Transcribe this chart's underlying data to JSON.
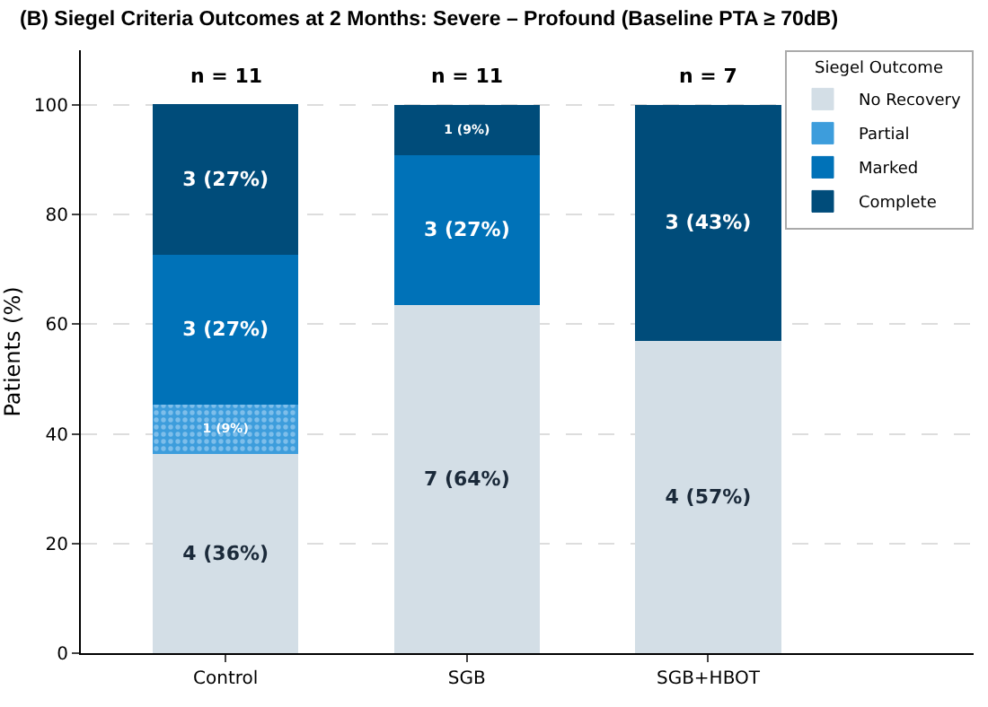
{
  "chart_data": {
    "type": "bar",
    "title": "(B) Siegel Criteria Outcomes at 2 Months: Severe – Profound (Baseline PTA ≥ 70dB)",
    "ylabel": "Patients (%)",
    "legend_title": "Siegel Outcome",
    "categories": [
      "Control",
      "SGB",
      "SGB+HBOT"
    ],
    "stacked": true,
    "series": [
      {
        "name": "No Recovery",
        "color": "#d3dee6",
        "values": [
          36.4,
          63.6,
          57.1
        ],
        "value_labels": [
          "4 (36%)",
          "7 (64%)",
          "4 (57%)"
        ]
      },
      {
        "name": "Partial",
        "color": "#3d9ddc",
        "values": [
          9.1,
          0,
          0
        ],
        "value_labels": [
          "1 (9%)",
          null,
          null
        ]
      },
      {
        "name": "Marked",
        "color": "#0072b8",
        "values": [
          27.3,
          27.3,
          0
        ],
        "value_labels": [
          "3 (27%)",
          "3 (27%)",
          null
        ]
      },
      {
        "name": "Complete",
        "color": "#004c7a",
        "values": [
          27.3,
          9.1,
          42.9
        ],
        "value_labels": [
          "3 (27%)",
          "1 (9%)",
          "3 (43%)"
        ]
      }
    ],
    "annotations": [
      {
        "text": "n = 11",
        "x": "Control",
        "y": 100
      },
      {
        "text": "n = 11",
        "x": "SGB",
        "y": 100
      },
      {
        "text": "n = 7",
        "x": "SGB+HBOT",
        "y": 100
      }
    ],
    "ylim": [
      0,
      110
    ],
    "yticks": [
      0,
      20,
      40,
      60,
      80,
      100
    ],
    "grid": "y",
    "legend": "top right"
  }
}
